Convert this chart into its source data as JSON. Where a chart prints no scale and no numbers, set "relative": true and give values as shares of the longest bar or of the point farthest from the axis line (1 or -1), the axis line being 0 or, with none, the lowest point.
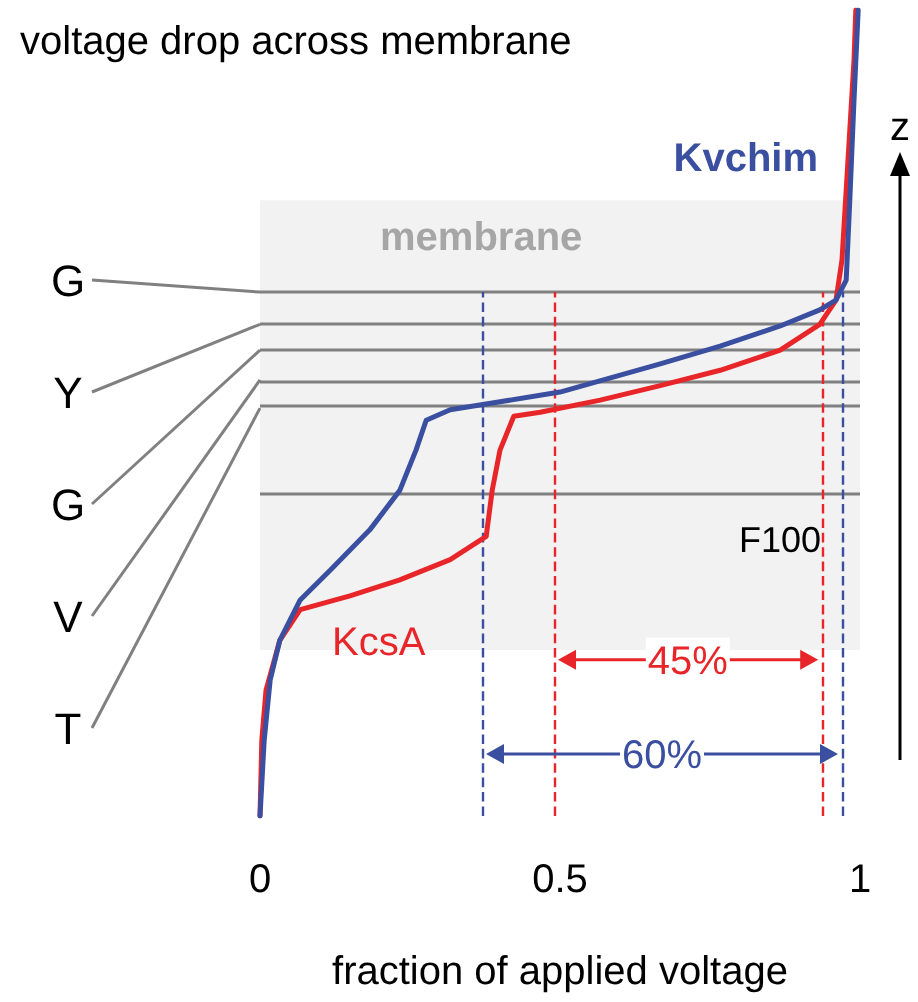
{
  "chart_data": {
    "type": "line",
    "title": "voltage drop across membrane",
    "xlabel": "fraction of applied voltage",
    "relative": true,
    "xlim": [
      0,
      1
    ],
    "xticks": [
      0,
      0.5,
      1
    ],
    "grid": false,
    "legend": false,
    "marker": "none",
    "line_style": "solid",
    "series": [
      {
        "name": "KcsA",
        "color": "#e8262a",
        "x": [
          0,
          0.003,
          0.01,
          0.033,
          0.067,
          0.15,
          0.233,
          0.317,
          0.377,
          0.387,
          0.4,
          0.423,
          0.467,
          0.567,
          0.667,
          0.767,
          0.867,
          0.933,
          0.96,
          0.97,
          0.98,
          0.99,
          0.993
        ],
        "values": [
          0,
          0.094,
          0.156,
          0.218,
          0.256,
          0.273,
          0.293,
          0.318,
          0.347,
          0.404,
          0.454,
          0.496,
          0.501,
          0.516,
          0.534,
          0.553,
          0.578,
          0.61,
          0.64,
          0.69,
          0.814,
          0.938,
          1
        ]
      },
      {
        "name": "Kvchim",
        "color": "#3a4fa0",
        "x": [
          0,
          0.007,
          0.017,
          0.033,
          0.067,
          0.117,
          0.183,
          0.233,
          0.26,
          0.277,
          0.317,
          0.4,
          0.5,
          0.667,
          0.767,
          0.867,
          0.933,
          0.96,
          0.977,
          0.983,
          0.99,
          0.997
        ],
        "values": [
          0,
          0.094,
          0.169,
          0.218,
          0.268,
          0.305,
          0.355,
          0.404,
          0.454,
          0.491,
          0.504,
          0.514,
          0.526,
          0.561,
          0.583,
          0.608,
          0.628,
          0.64,
          0.665,
          0.764,
          0.888,
          1
        ]
      }
    ],
    "ref_lines": [
      {
        "axis": "y",
        "value": 0.65,
        "label": "G",
        "color": "#808080"
      },
      {
        "axis": "y",
        "value": 0.61,
        "label": "Y",
        "color": "#808080"
      },
      {
        "axis": "y",
        "value": 0.578,
        "label": "G",
        "color": "#808080"
      },
      {
        "axis": "y",
        "value": 0.541,
        "label": "V",
        "color": "#808080"
      },
      {
        "axis": "y",
        "value": 0.506,
        "label": "T",
        "color": "#808080"
      },
      {
        "axis": "y",
        "value": 0.397,
        "color": "#808080"
      },
      {
        "axis": "x",
        "value": 0.49,
        "color": "#e8262a",
        "line_style": "dashed"
      },
      {
        "axis": "x",
        "value": 0.937,
        "color": "#e8262a",
        "line_style": "dashed"
      },
      {
        "axis": "x",
        "value": 0.37,
        "color": "#3a4fa0",
        "line_style": "dashed"
      },
      {
        "axis": "x",
        "value": 0.97,
        "color": "#3a4fa0",
        "line_style": "dashed"
      }
    ],
    "bands": [
      {
        "axis": "y",
        "from": 0.206,
        "to": 0.764,
        "label": "membrane",
        "color": "#f2f2f2"
      }
    ],
    "annotations": [
      {
        "text": "45%",
        "x": 0.713,
        "y": 0.194
      },
      {
        "text": "60%",
        "x": 0.67,
        "y": 0.077
      },
      "F100",
      "z"
    ]
  }
}
